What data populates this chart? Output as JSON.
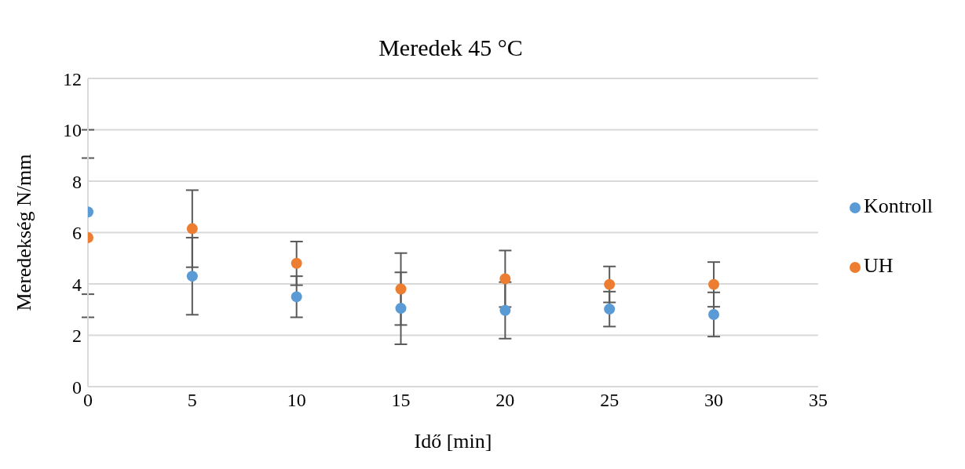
{
  "chart_data": {
    "type": "scatter",
    "title": "Meredek 45 °C",
    "xlabel": "Idő [min]",
    "ylabel": "Meredekség N/mm",
    "x": [
      0,
      5,
      10,
      15,
      20,
      25,
      30
    ],
    "series": [
      {
        "name": "Kontroll",
        "color": "#5b9bd5",
        "values": [
          6.8,
          4.3,
          3.5,
          3.05,
          2.97,
          3.02,
          2.81
        ],
        "errors": [
          3.2,
          1.5,
          0.8,
          1.4,
          1.1,
          0.68,
          0.86
        ]
      },
      {
        "name": "UH",
        "color": "#ed7d31",
        "values": [
          5.8,
          6.15,
          4.8,
          3.8,
          4.2,
          3.98,
          3.98
        ],
        "errors": [
          3.1,
          1.5,
          0.85,
          1.4,
          1.1,
          0.7,
          0.87
        ]
      }
    ],
    "xlim": [
      0,
      35
    ],
    "xticks": [
      0,
      5,
      10,
      15,
      20,
      25,
      30,
      35
    ],
    "ylim": [
      0,
      12
    ],
    "yticks": [
      0,
      2,
      4,
      6,
      8,
      10,
      12
    ],
    "grid": "y",
    "legend": "right",
    "marker": "circle"
  }
}
